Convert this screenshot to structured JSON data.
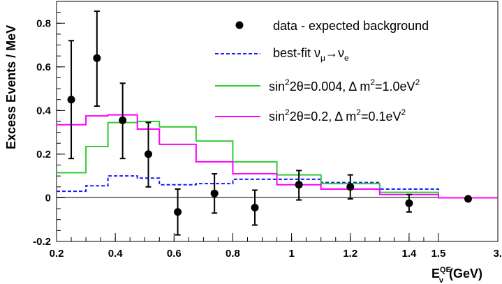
{
  "chart_data": {
    "type": "step-histogram-with-points",
    "xlabel_main": "E",
    "xlabel_sub": "ν",
    "xlabel_sup": "QE",
    "xlabel_unit": "(GeV)",
    "ylabel": "Excess Events / MeV",
    "ylim": [
      -0.2,
      0.9
    ],
    "y_ticks": [
      -0.2,
      0,
      0.2,
      0.4,
      0.6,
      0.8
    ],
    "y_tick_labels": [
      "-0.2",
      "0",
      "0.2",
      "0.4",
      "0.6",
      "0.8"
    ],
    "x_tick_labels": [
      "0.2",
      "0.4",
      "0.6",
      "0.8",
      "1",
      "1.2",
      "1.4",
      "1.5",
      "3."
    ],
    "bin_edges": [
      0.2,
      0.3,
      0.375,
      0.475,
      0.55,
      0.675,
      0.8,
      0.95,
      1.1,
      1.3,
      1.5,
      3.0
    ],
    "points": {
      "name": "data - expected background",
      "x": [
        0.25,
        0.3375,
        0.425,
        0.5125,
        0.6125,
        0.7375,
        0.875,
        1.025,
        1.2,
        1.4,
        2.25
      ],
      "y": [
        0.45,
        0.64,
        0.355,
        0.2,
        -0.065,
        0.02,
        -0.045,
        0.06,
        0.05,
        -0.025,
        -0.005
      ],
      "err_low": [
        0.27,
        0.22,
        0.175,
        0.15,
        0.105,
        0.09,
        0.08,
        0.07,
        0.055,
        0.04,
        0.01
      ],
      "err_high": [
        0.27,
        0.215,
        0.17,
        0.145,
        0.105,
        0.09,
        0.08,
        0.065,
        0.055,
        0.04,
        0.01
      ]
    },
    "series": [
      {
        "name": "best-fit",
        "legend_main": "best-fit ν",
        "legend_sub1": "μ",
        "legend_arrow": "→ν",
        "legend_sub2": "e",
        "color": "#1a1aff",
        "dashed": true,
        "values": [
          0.03,
          0.055,
          0.1,
          0.09,
          0.06,
          0.065,
          0.085,
          0.085,
          0.07,
          0.04,
          0.0
        ]
      },
      {
        "name": "sin22θ=0.004, Δm2=1.0eV2",
        "legend_a": "sin",
        "legend_a_sup": "2",
        "legend_b": "2θ=0.004, Δ m",
        "legend_b_sup": "2",
        "legend_c": "=1.0eV",
        "legend_c_sup": "2",
        "color": "#33cc33",
        "dashed": false,
        "values": [
          0.115,
          0.235,
          0.345,
          0.35,
          0.325,
          0.26,
          0.165,
          0.105,
          0.065,
          0.025,
          0.0
        ]
      },
      {
        "name": "sin22θ=0.2, Δm2=0.1eV2",
        "legend_a": "sin",
        "legend_a_sup": "2",
        "legend_b": "2θ=0.2, Δ m",
        "legend_b_sup": "2",
        "legend_c": "=0.1eV",
        "legend_c_sup": "2",
        "color": "#ff00ff",
        "dashed": false,
        "values": [
          0.335,
          0.375,
          0.38,
          0.315,
          0.245,
          0.165,
          0.11,
          0.06,
          0.04,
          0.015,
          0.0
        ]
      }
    ],
    "legend_position": "top-right"
  }
}
